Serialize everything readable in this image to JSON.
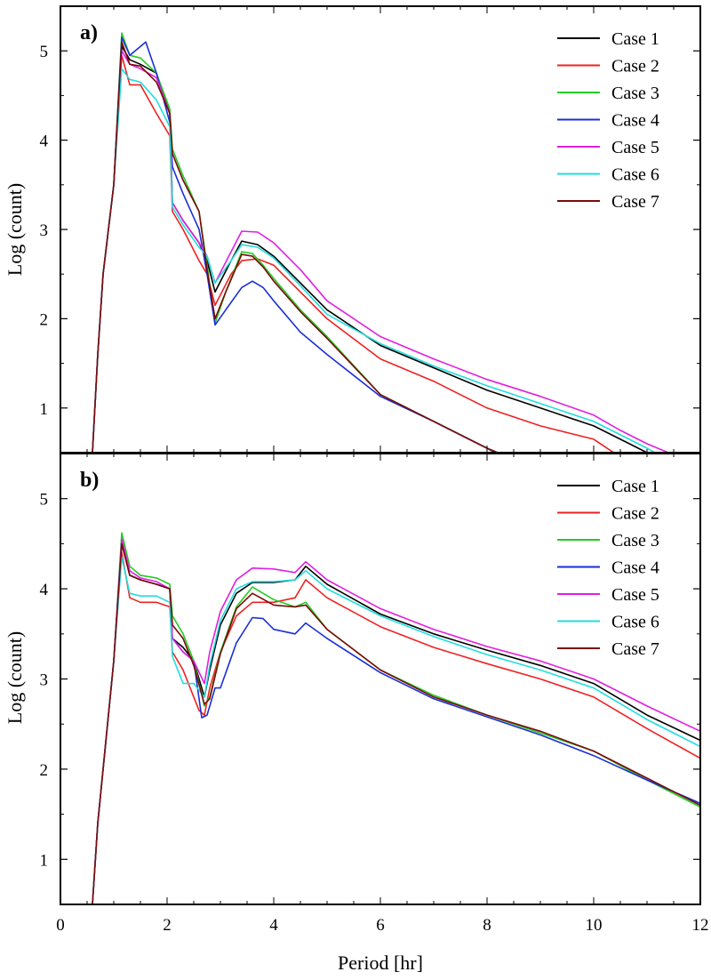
{
  "colors": {
    "Case 1": "#000000",
    "Case 2": "#ee2222",
    "Case 3": "#22cc22",
    "Case 4": "#1a2fd6",
    "Case 5": "#e020e0",
    "Case 6": "#22dddd",
    "Case 7": "#7a0a0a"
  },
  "chart_data": [
    {
      "type": "line",
      "panel_label": "a)",
      "xlabel": "",
      "ylabel": "Log (count)",
      "xlim": [
        0,
        12
      ],
      "ylim": [
        0.5,
        5.5
      ],
      "xticks": [],
      "yticks": [
        1,
        2,
        3,
        4,
        5
      ],
      "legend_position": "top-right",
      "grid": false,
      "series": [
        {
          "name": "Case 1",
          "x": [
            0.6,
            0.7,
            0.8,
            1.0,
            1.15,
            1.3,
            1.5,
            1.8,
            2.05,
            2.1,
            2.3,
            2.6,
            2.75,
            2.9,
            3.2,
            3.4,
            3.7,
            4.0,
            4.5,
            5.0,
            6.0,
            7.0,
            8.0,
            9.0,
            10.0,
            10.5,
            11.0
          ],
          "y": [
            0.5,
            1.6,
            2.5,
            3.5,
            5.05,
            4.9,
            4.85,
            4.75,
            4.3,
            3.3,
            3.1,
            2.85,
            2.65,
            2.3,
            2.65,
            2.87,
            2.83,
            2.7,
            2.4,
            2.1,
            1.7,
            1.45,
            1.2,
            1.0,
            0.8,
            0.65,
            0.5
          ]
        },
        {
          "name": "Case 2",
          "x": [
            0.6,
            0.7,
            0.8,
            1.0,
            1.15,
            1.3,
            1.5,
            1.8,
            2.05,
            2.1,
            2.3,
            2.6,
            2.75,
            2.9,
            3.2,
            3.4,
            3.7,
            4.0,
            4.5,
            5.0,
            6.0,
            7.0,
            8.0,
            9.0,
            10.0,
            10.5
          ],
          "y": [
            0.5,
            1.6,
            2.5,
            3.5,
            4.95,
            4.62,
            4.62,
            4.3,
            4.05,
            3.2,
            3.0,
            2.65,
            2.5,
            2.15,
            2.5,
            2.65,
            2.67,
            2.6,
            2.3,
            2.0,
            1.55,
            1.3,
            1.0,
            0.8,
            0.65,
            0.45
          ]
        },
        {
          "name": "Case 3",
          "x": [
            0.6,
            0.7,
            0.8,
            1.0,
            1.15,
            1.3,
            1.5,
            1.8,
            2.05,
            2.1,
            2.3,
            2.6,
            2.75,
            2.9,
            3.1,
            3.4,
            3.6,
            3.8,
            4.0,
            4.5,
            5.0,
            6.0,
            7.0,
            8.0,
            8.4
          ],
          "y": [
            0.5,
            1.6,
            2.5,
            3.5,
            5.2,
            4.95,
            4.92,
            4.75,
            4.35,
            3.9,
            3.6,
            3.2,
            2.6,
            1.95,
            2.3,
            2.75,
            2.73,
            2.6,
            2.45,
            2.1,
            1.8,
            1.15,
            0.85,
            0.55,
            0.45
          ]
        },
        {
          "name": "Case 4",
          "x": [
            0.6,
            0.7,
            0.8,
            1.0,
            1.15,
            1.3,
            1.5,
            1.6,
            1.8,
            2.05,
            2.1,
            2.3,
            2.6,
            2.75,
            2.9,
            3.1,
            3.4,
            3.6,
            3.8,
            4.0,
            4.5,
            5.0,
            6.0,
            7.0,
            8.0,
            8.3
          ],
          "y": [
            0.5,
            1.6,
            2.5,
            3.5,
            5.15,
            4.95,
            5.05,
            5.1,
            4.75,
            4.2,
            3.7,
            3.4,
            3.0,
            2.5,
            1.93,
            2.1,
            2.35,
            2.42,
            2.35,
            2.2,
            1.85,
            1.6,
            1.13,
            0.85,
            0.55,
            0.45
          ]
        },
        {
          "name": "Case 5",
          "x": [
            0.6,
            0.7,
            0.8,
            1.0,
            1.15,
            1.3,
            1.5,
            1.8,
            2.05,
            2.1,
            2.3,
            2.6,
            2.75,
            2.9,
            3.2,
            3.4,
            3.7,
            4.0,
            4.5,
            5.0,
            6.0,
            7.0,
            8.0,
            9.0,
            10.0,
            10.5,
            11.0,
            11.6
          ],
          "y": [
            0.5,
            1.6,
            2.5,
            3.5,
            5.0,
            4.85,
            4.8,
            4.7,
            4.3,
            3.3,
            3.1,
            2.85,
            2.7,
            2.4,
            2.75,
            2.98,
            2.97,
            2.85,
            2.55,
            2.2,
            1.8,
            1.55,
            1.32,
            1.13,
            0.92,
            0.75,
            0.6,
            0.45
          ]
        },
        {
          "name": "Case 6",
          "x": [
            0.6,
            0.7,
            0.8,
            1.0,
            1.15,
            1.3,
            1.5,
            1.8,
            2.05,
            2.1,
            2.3,
            2.6,
            2.75,
            2.9,
            3.2,
            3.4,
            3.7,
            4.0,
            4.5,
            5.0,
            6.0,
            7.0,
            8.0,
            9.0,
            10.0,
            10.5,
            11.0,
            11.3
          ],
          "y": [
            0.5,
            1.6,
            2.5,
            3.5,
            4.8,
            4.68,
            4.65,
            4.45,
            4.15,
            3.25,
            3.05,
            2.8,
            2.7,
            2.4,
            2.65,
            2.83,
            2.8,
            2.68,
            2.37,
            2.05,
            1.72,
            1.47,
            1.25,
            1.05,
            0.85,
            0.7,
            0.55,
            0.45
          ]
        },
        {
          "name": "Case 7",
          "x": [
            0.6,
            0.7,
            0.8,
            1.0,
            1.15,
            1.3,
            1.5,
            1.8,
            2.05,
            2.1,
            2.3,
            2.6,
            2.75,
            2.9,
            3.1,
            3.4,
            3.6,
            3.8,
            4.0,
            4.5,
            5.0,
            6.0,
            7.0,
            8.0,
            8.4
          ],
          "y": [
            0.5,
            1.6,
            2.5,
            3.5,
            5.1,
            4.85,
            4.83,
            4.65,
            4.3,
            3.85,
            3.55,
            3.2,
            2.55,
            2.0,
            2.3,
            2.72,
            2.7,
            2.58,
            2.42,
            2.08,
            1.78,
            1.15,
            0.85,
            0.55,
            0.45
          ]
        }
      ]
    },
    {
      "type": "line",
      "panel_label": "b)",
      "xlabel": "Period [hr]",
      "ylabel": "Log (count)",
      "xlim": [
        0,
        12
      ],
      "ylim": [
        0.5,
        5.5
      ],
      "xticks": [
        0,
        2,
        4,
        6,
        8,
        10,
        12
      ],
      "yticks": [
        1,
        2,
        3,
        4,
        5
      ],
      "legend_position": "top-right",
      "grid": false,
      "series": [
        {
          "name": "Case 1",
          "x": [
            0.6,
            0.7,
            0.8,
            1.0,
            1.15,
            1.3,
            1.5,
            1.8,
            2.05,
            2.1,
            2.3,
            2.5,
            2.7,
            2.8,
            3.0,
            3.3,
            3.6,
            4.0,
            4.4,
            4.6,
            5.0,
            6.0,
            7.0,
            8.0,
            9.0,
            10.0,
            11.0,
            12.0
          ],
          "y": [
            0.5,
            1.4,
            2.0,
            3.2,
            4.5,
            4.15,
            4.1,
            4.05,
            4.0,
            3.45,
            3.35,
            3.2,
            2.8,
            3.1,
            3.6,
            3.95,
            4.07,
            4.07,
            4.1,
            4.25,
            4.05,
            3.72,
            3.5,
            3.32,
            3.15,
            2.95,
            2.6,
            2.32
          ]
        },
        {
          "name": "Case 2",
          "x": [
            0.6,
            0.7,
            0.8,
            1.0,
            1.15,
            1.3,
            1.5,
            1.8,
            2.05,
            2.1,
            2.3,
            2.5,
            2.6,
            2.7,
            2.8,
            3.0,
            3.3,
            3.6,
            4.0,
            4.4,
            4.6,
            5.0,
            6.0,
            7.0,
            8.0,
            9.0,
            10.0,
            11.0,
            12.0
          ],
          "y": [
            0.5,
            1.4,
            2.0,
            3.2,
            4.4,
            3.9,
            3.85,
            3.85,
            3.8,
            3.3,
            3.1,
            2.8,
            2.65,
            2.6,
            2.9,
            3.3,
            3.7,
            3.85,
            3.85,
            3.9,
            4.1,
            3.9,
            3.58,
            3.35,
            3.17,
            3.0,
            2.8,
            2.45,
            2.12
          ]
        },
        {
          "name": "Case 3",
          "x": [
            0.6,
            0.7,
            0.8,
            1.0,
            1.15,
            1.3,
            1.5,
            1.8,
            2.05,
            2.1,
            2.3,
            2.5,
            2.7,
            2.8,
            3.0,
            3.3,
            3.6,
            4.0,
            4.4,
            4.6,
            5.0,
            6.0,
            7.0,
            8.0,
            9.0,
            10.0,
            11.0,
            12.0
          ],
          "y": [
            0.5,
            1.4,
            2.0,
            3.2,
            4.62,
            4.25,
            4.15,
            4.12,
            4.05,
            3.7,
            3.5,
            3.2,
            2.7,
            2.8,
            3.3,
            3.8,
            4.02,
            3.88,
            3.8,
            3.85,
            3.55,
            3.1,
            2.82,
            2.6,
            2.4,
            2.2,
            1.88,
            1.58
          ]
        },
        {
          "name": "Case 4",
          "x": [
            0.6,
            0.7,
            0.8,
            1.0,
            1.15,
            1.3,
            1.5,
            1.8,
            2.05,
            2.1,
            2.3,
            2.5,
            2.65,
            2.75,
            2.9,
            3.0,
            3.3,
            3.6,
            3.8,
            4.0,
            4.4,
            4.6,
            5.0,
            6.0,
            7.0,
            8.0,
            9.0,
            10.0,
            11.0,
            12.0
          ],
          "y": [
            0.5,
            1.4,
            2.0,
            3.2,
            4.55,
            4.15,
            4.1,
            4.05,
            4.0,
            3.45,
            3.3,
            3.2,
            2.57,
            2.6,
            2.9,
            2.9,
            3.4,
            3.68,
            3.67,
            3.55,
            3.5,
            3.62,
            3.45,
            3.07,
            2.78,
            2.58,
            2.38,
            2.15,
            1.88,
            1.62
          ]
        },
        {
          "name": "Case 5",
          "x": [
            0.6,
            0.7,
            0.8,
            1.0,
            1.15,
            1.3,
            1.5,
            1.8,
            2.05,
            2.1,
            2.3,
            2.5,
            2.7,
            2.8,
            3.0,
            3.3,
            3.6,
            4.0,
            4.4,
            4.6,
            5.0,
            6.0,
            7.0,
            8.0,
            9.0,
            10.0,
            11.0,
            12.0
          ],
          "y": [
            0.5,
            1.4,
            2.0,
            3.2,
            4.55,
            4.2,
            4.12,
            4.08,
            4.0,
            3.45,
            3.3,
            3.2,
            2.95,
            3.3,
            3.75,
            4.1,
            4.23,
            4.22,
            4.18,
            4.3,
            4.1,
            3.78,
            3.55,
            3.36,
            3.2,
            3.0,
            2.7,
            2.42
          ]
        },
        {
          "name": "Case 6",
          "x": [
            0.6,
            0.7,
            0.8,
            1.0,
            1.15,
            1.3,
            1.5,
            1.8,
            2.05,
            2.1,
            2.3,
            2.5,
            2.7,
            2.8,
            3.0,
            3.3,
            3.6,
            4.0,
            4.4,
            4.6,
            5.0,
            6.0,
            7.0,
            8.0,
            9.0,
            10.0,
            11.0,
            12.0
          ],
          "y": [
            0.5,
            1.4,
            2.0,
            3.2,
            4.35,
            3.95,
            3.92,
            3.92,
            3.85,
            3.25,
            2.95,
            2.95,
            2.8,
            3.15,
            3.65,
            4.0,
            4.08,
            4.08,
            4.1,
            4.2,
            4.0,
            3.7,
            3.47,
            3.27,
            3.1,
            2.9,
            2.55,
            2.25
          ]
        },
        {
          "name": "Case 7",
          "x": [
            0.6,
            0.7,
            0.8,
            1.0,
            1.15,
            1.3,
            1.5,
            1.8,
            2.05,
            2.1,
            2.3,
            2.5,
            2.7,
            2.8,
            3.0,
            3.3,
            3.6,
            4.0,
            4.4,
            4.6,
            5.0,
            6.0,
            7.0,
            8.0,
            9.0,
            10.0,
            11.0,
            12.0
          ],
          "y": [
            0.5,
            1.4,
            2.0,
            3.2,
            4.5,
            4.15,
            4.1,
            4.05,
            4.0,
            3.6,
            3.45,
            3.15,
            2.72,
            2.78,
            3.28,
            3.78,
            3.95,
            3.82,
            3.8,
            3.82,
            3.55,
            3.1,
            2.8,
            2.6,
            2.42,
            2.2,
            1.9,
            1.6
          ]
        }
      ]
    }
  ]
}
